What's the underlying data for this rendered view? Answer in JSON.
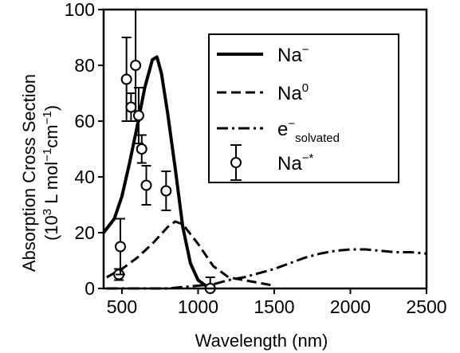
{
  "chart_data": {
    "type": "line",
    "xlabel": "Wavelength (nm)",
    "ylabel": {
      "line1": "Absorption Cross Section",
      "line2_prefix": "(10",
      "line2_sup1": "3",
      "line2_mid": " L mol",
      "line2_sup2": "−1",
      "line2_mid2": "cm",
      "line2_sup3": "−1",
      "line2_suffix": ")"
    },
    "xlim": [
      380,
      2500
    ],
    "ylim": [
      0,
      100
    ],
    "xticks": [
      500,
      1000,
      1500,
      2000,
      2500
    ],
    "yticks": [
      0,
      20,
      40,
      60,
      80,
      100
    ],
    "grid": false,
    "legend_position": "top-right",
    "series": [
      {
        "id": "na-minus",
        "legend": {
          "base": "Na",
          "sup": "−",
          "sub": ""
        },
        "style": "solid",
        "x": [
          380,
          450,
          500,
          550,
          600,
          650,
          700,
          730,
          760,
          800,
          850,
          900,
          950,
          1000,
          1050,
          1100
        ],
        "y": [
          20,
          25,
          33,
          45,
          58,
          72,
          82,
          83,
          77,
          63,
          43,
          22,
          9,
          3,
          1,
          0
        ]
      },
      {
        "id": "na-zero",
        "legend": {
          "base": "Na",
          "sup": "0",
          "sub": ""
        },
        "style": "dashed",
        "x": [
          400,
          500,
          600,
          700,
          800,
          850,
          900,
          1000,
          1100,
          1200,
          1300,
          1400,
          1500
        ],
        "y": [
          4,
          7,
          11,
          16,
          22,
          24,
          23,
          16,
          8,
          4,
          3,
          2,
          1
        ]
      },
      {
        "id": "e-solvated",
        "legend": {
          "base": "e",
          "sup": "−",
          "sub": "solvated"
        },
        "style": "dashdot",
        "x": [
          400,
          600,
          800,
          1000,
          1100,
          1200,
          1300,
          1400,
          1500,
          1600,
          1700,
          1800,
          1900,
          2000,
          2100,
          2200,
          2300,
          2400,
          2500
        ],
        "y": [
          0,
          0,
          0,
          1,
          1.5,
          3,
          4,
          5.5,
          7,
          9,
          11,
          12.5,
          13.5,
          14,
          14,
          13.5,
          13,
          13,
          12.5
        ]
      },
      {
        "id": "na-star",
        "legend": {
          "base": "Na",
          "sup": "−*",
          "sub": ""
        },
        "style": "points-with-errorbars",
        "x": [
          480,
          490,
          530,
          560,
          590,
          610,
          630,
          660,
          790,
          1080
        ],
        "y": [
          5,
          15,
          75,
          65,
          80,
          62,
          50,
          37,
          35,
          0
        ],
        "err": [
          2,
          10,
          15,
          5,
          20,
          10,
          5,
          7,
          7,
          4
        ]
      }
    ]
  }
}
